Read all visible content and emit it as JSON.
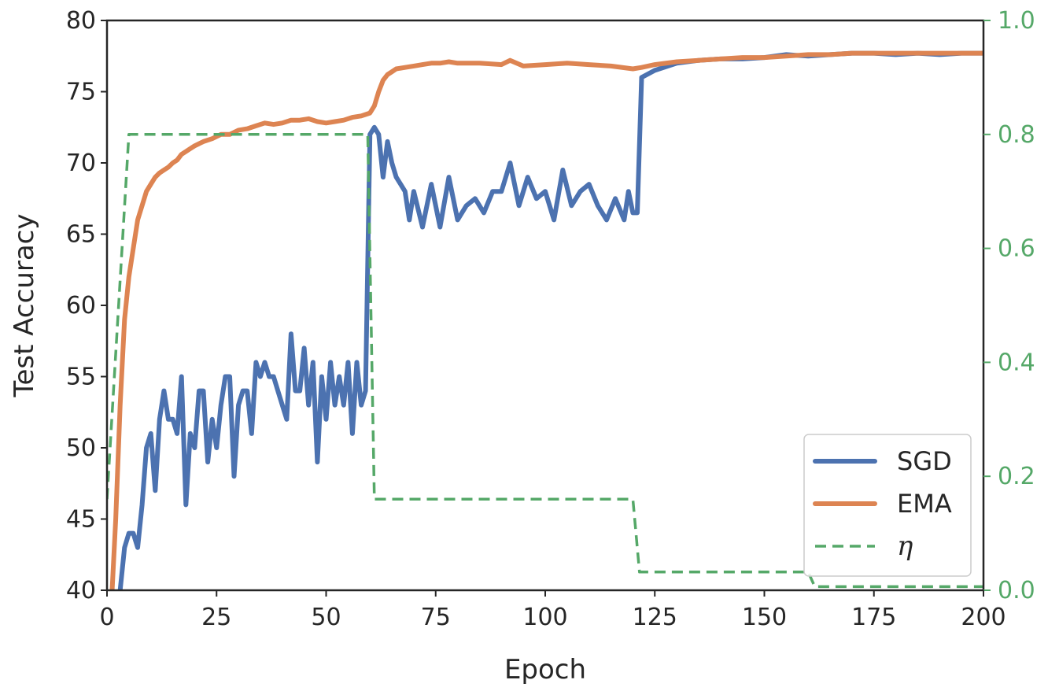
{
  "chart_data": {
    "type": "line",
    "xlabel": "Epoch",
    "ylabel": "Test Accuracy",
    "xlim": [
      0,
      200
    ],
    "ylim": [
      40,
      80
    ],
    "y2lim": [
      0,
      1
    ],
    "xticks": [
      "0",
      "25",
      "50",
      "75",
      "100",
      "125",
      "150",
      "175",
      "200"
    ],
    "yticks": [
      "40",
      "45",
      "50",
      "55",
      "60",
      "65",
      "70",
      "75",
      "80"
    ],
    "y2ticks": [
      "0.0",
      "0.2",
      "0.4",
      "0.6",
      "0.8",
      "1.0"
    ],
    "grid": false,
    "legend_position": "bottom-right",
    "series": [
      {
        "name": "SGD",
        "axis": "left",
        "color": "#4c72b0",
        "style": "solid",
        "x": [
          1,
          2,
          3,
          4,
          5,
          6,
          7,
          8,
          9,
          10,
          11,
          12,
          13,
          14,
          15,
          16,
          17,
          18,
          19,
          20,
          21,
          22,
          23,
          24,
          25,
          26,
          27,
          28,
          29,
          30,
          31,
          32,
          33,
          34,
          35,
          36,
          37,
          38,
          39,
          40,
          41,
          42,
          43,
          44,
          45,
          46,
          47,
          48,
          49,
          50,
          51,
          52,
          53,
          54,
          55,
          56,
          57,
          58,
          59,
          60,
          61,
          62,
          63,
          64,
          65,
          66,
          67,
          68,
          69,
          70,
          72,
          74,
          76,
          78,
          80,
          82,
          84,
          86,
          88,
          90,
          92,
          94,
          96,
          98,
          100,
          102,
          104,
          106,
          108,
          110,
          112,
          114,
          116,
          118,
          119,
          120,
          121,
          122,
          125,
          130,
          135,
          140,
          145,
          150,
          155,
          160,
          165,
          170,
          175,
          180,
          185,
          190,
          195,
          200
        ],
        "y": [
          39,
          39.5,
          40,
          43,
          44,
          44,
          43,
          46,
          50,
          51,
          47,
          52,
          54,
          52,
          52,
          51,
          55,
          46,
          51,
          50,
          54,
          54,
          49,
          52,
          50,
          53,
          55,
          55,
          48,
          53,
          54,
          54,
          51,
          56,
          55,
          56,
          55,
          55,
          54,
          53,
          52,
          58,
          54,
          54,
          57,
          53,
          56,
          49,
          55,
          52,
          56,
          53,
          55,
          53,
          56,
          51,
          56,
          53,
          54,
          72,
          72.5,
          72,
          69,
          71.5,
          70,
          69,
          68.5,
          68,
          66,
          68,
          65.5,
          68.5,
          65.5,
          69,
          66,
          67,
          67.5,
          66.5,
          68,
          68,
          70,
          67,
          69,
          67.5,
          68,
          66,
          69.5,
          67,
          68,
          68.5,
          67,
          66,
          67.5,
          66,
          68,
          66.5,
          66.5,
          76,
          76.5,
          77,
          77.2,
          77.3,
          77.3,
          77.4,
          77.6,
          77.5,
          77.6,
          77.7,
          77.7,
          77.6,
          77.7,
          77.6,
          77.7,
          77.7
        ]
      },
      {
        "name": "EMA",
        "axis": "left",
        "color": "#dd8452",
        "style": "solid",
        "x": [
          1,
          2,
          3,
          4,
          5,
          6,
          7,
          8,
          9,
          10,
          11,
          12,
          13,
          14,
          15,
          16,
          17,
          18,
          19,
          20,
          22,
          24,
          26,
          28,
          30,
          32,
          34,
          36,
          38,
          40,
          42,
          44,
          46,
          48,
          50,
          52,
          54,
          56,
          58,
          59,
          60,
          61,
          62,
          63,
          64,
          65,
          66,
          68,
          70,
          72,
          74,
          76,
          78,
          80,
          85,
          90,
          92,
          95,
          100,
          105,
          110,
          115,
          120,
          122,
          125,
          130,
          135,
          140,
          145,
          150,
          155,
          160,
          165,
          170,
          175,
          180,
          185,
          190,
          195,
          200
        ],
        "y": [
          39,
          45,
          53,
          59,
          62,
          64,
          66,
          67,
          68,
          68.5,
          69,
          69.3,
          69.5,
          69.7,
          70,
          70.2,
          70.6,
          70.8,
          71,
          71.2,
          71.5,
          71.7,
          72,
          72,
          72.3,
          72.4,
          72.6,
          72.8,
          72.7,
          72.8,
          73,
          73,
          73.1,
          72.9,
          72.8,
          72.9,
          73,
          73.2,
          73.3,
          73.4,
          73.5,
          74,
          75,
          75.8,
          76.2,
          76.4,
          76.6,
          76.7,
          76.8,
          76.9,
          77,
          77,
          77.1,
          77,
          77,
          76.9,
          77.2,
          76.8,
          76.9,
          77,
          76.9,
          76.8,
          76.6,
          76.7,
          76.9,
          77.1,
          77.2,
          77.3,
          77.4,
          77.4,
          77.5,
          77.6,
          77.6,
          77.7,
          77.7,
          77.7,
          77.7,
          77.7,
          77.7,
          77.7
        ]
      },
      {
        "name": "η",
        "axis": "right",
        "color": "#55a868",
        "style": "dashed",
        "x": [
          0,
          5,
          59.5,
          61,
          120,
          121.5,
          160,
          161.5,
          200
        ],
        "y": [
          0.16,
          0.8,
          0.8,
          0.16,
          0.16,
          0.032,
          0.032,
          0.0064,
          0.0064
        ]
      }
    ]
  }
}
